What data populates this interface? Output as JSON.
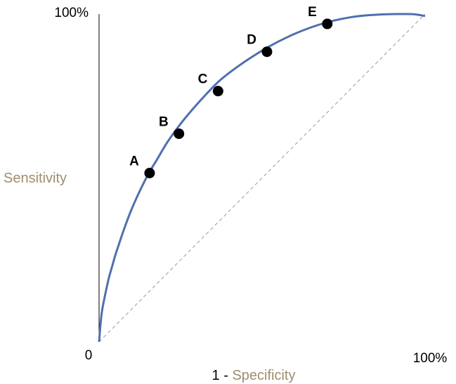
{
  "chart_data": {
    "type": "line",
    "xlabel_prefix": "1 - ",
    "xlabel_main": "Specificity",
    "ylabel": "Sensitivity",
    "x_tick_labels": {
      "min": "0",
      "max": "100%"
    },
    "y_tick_labels": {
      "max": "100%"
    },
    "xlim": [
      0,
      100
    ],
    "ylim": [
      0,
      100
    ],
    "grid": false,
    "colors": {
      "curve": "#4f6fb0",
      "diagonal": "#9a9a9a",
      "axis": "#000000",
      "axis_label": "#a08c6e",
      "points": "#000000"
    },
    "series": [
      {
        "values_x": [
          0,
          0.5,
          1,
          2,
          3,
          4,
          5,
          6,
          7,
          8,
          9,
          10,
          12,
          15,
          18,
          21,
          25,
          29,
          33,
          37,
          42,
          47,
          52,
          57,
          62,
          67,
          72,
          77,
          82,
          87,
          91,
          94,
          97,
          100
        ],
        "values_y": [
          0,
          6,
          10,
          15,
          19.5,
          23,
          26.5,
          29.5,
          32.5,
          35.3,
          38,
          40.5,
          45,
          51,
          56,
          61,
          66.5,
          71.3,
          75.7,
          79.7,
          83.6,
          87,
          90,
          92.6,
          94.8,
          96.6,
          98,
          99,
          99.6,
          99.9,
          100,
          100,
          99.9,
          99.4
        ]
      }
    ],
    "diagonal": {
      "x": [
        0,
        100
      ],
      "y": [
        0,
        100
      ]
    },
    "points": [
      {
        "label": "A",
        "x": 15.5,
        "y": 51.5
      },
      {
        "label": "B",
        "x": 24.5,
        "y": 63.5
      },
      {
        "label": "C",
        "x": 36.5,
        "y": 76.5
      },
      {
        "label": "D",
        "x": 51.5,
        "y": 88.5
      },
      {
        "label": "E",
        "x": 70,
        "y": 97
      }
    ]
  }
}
